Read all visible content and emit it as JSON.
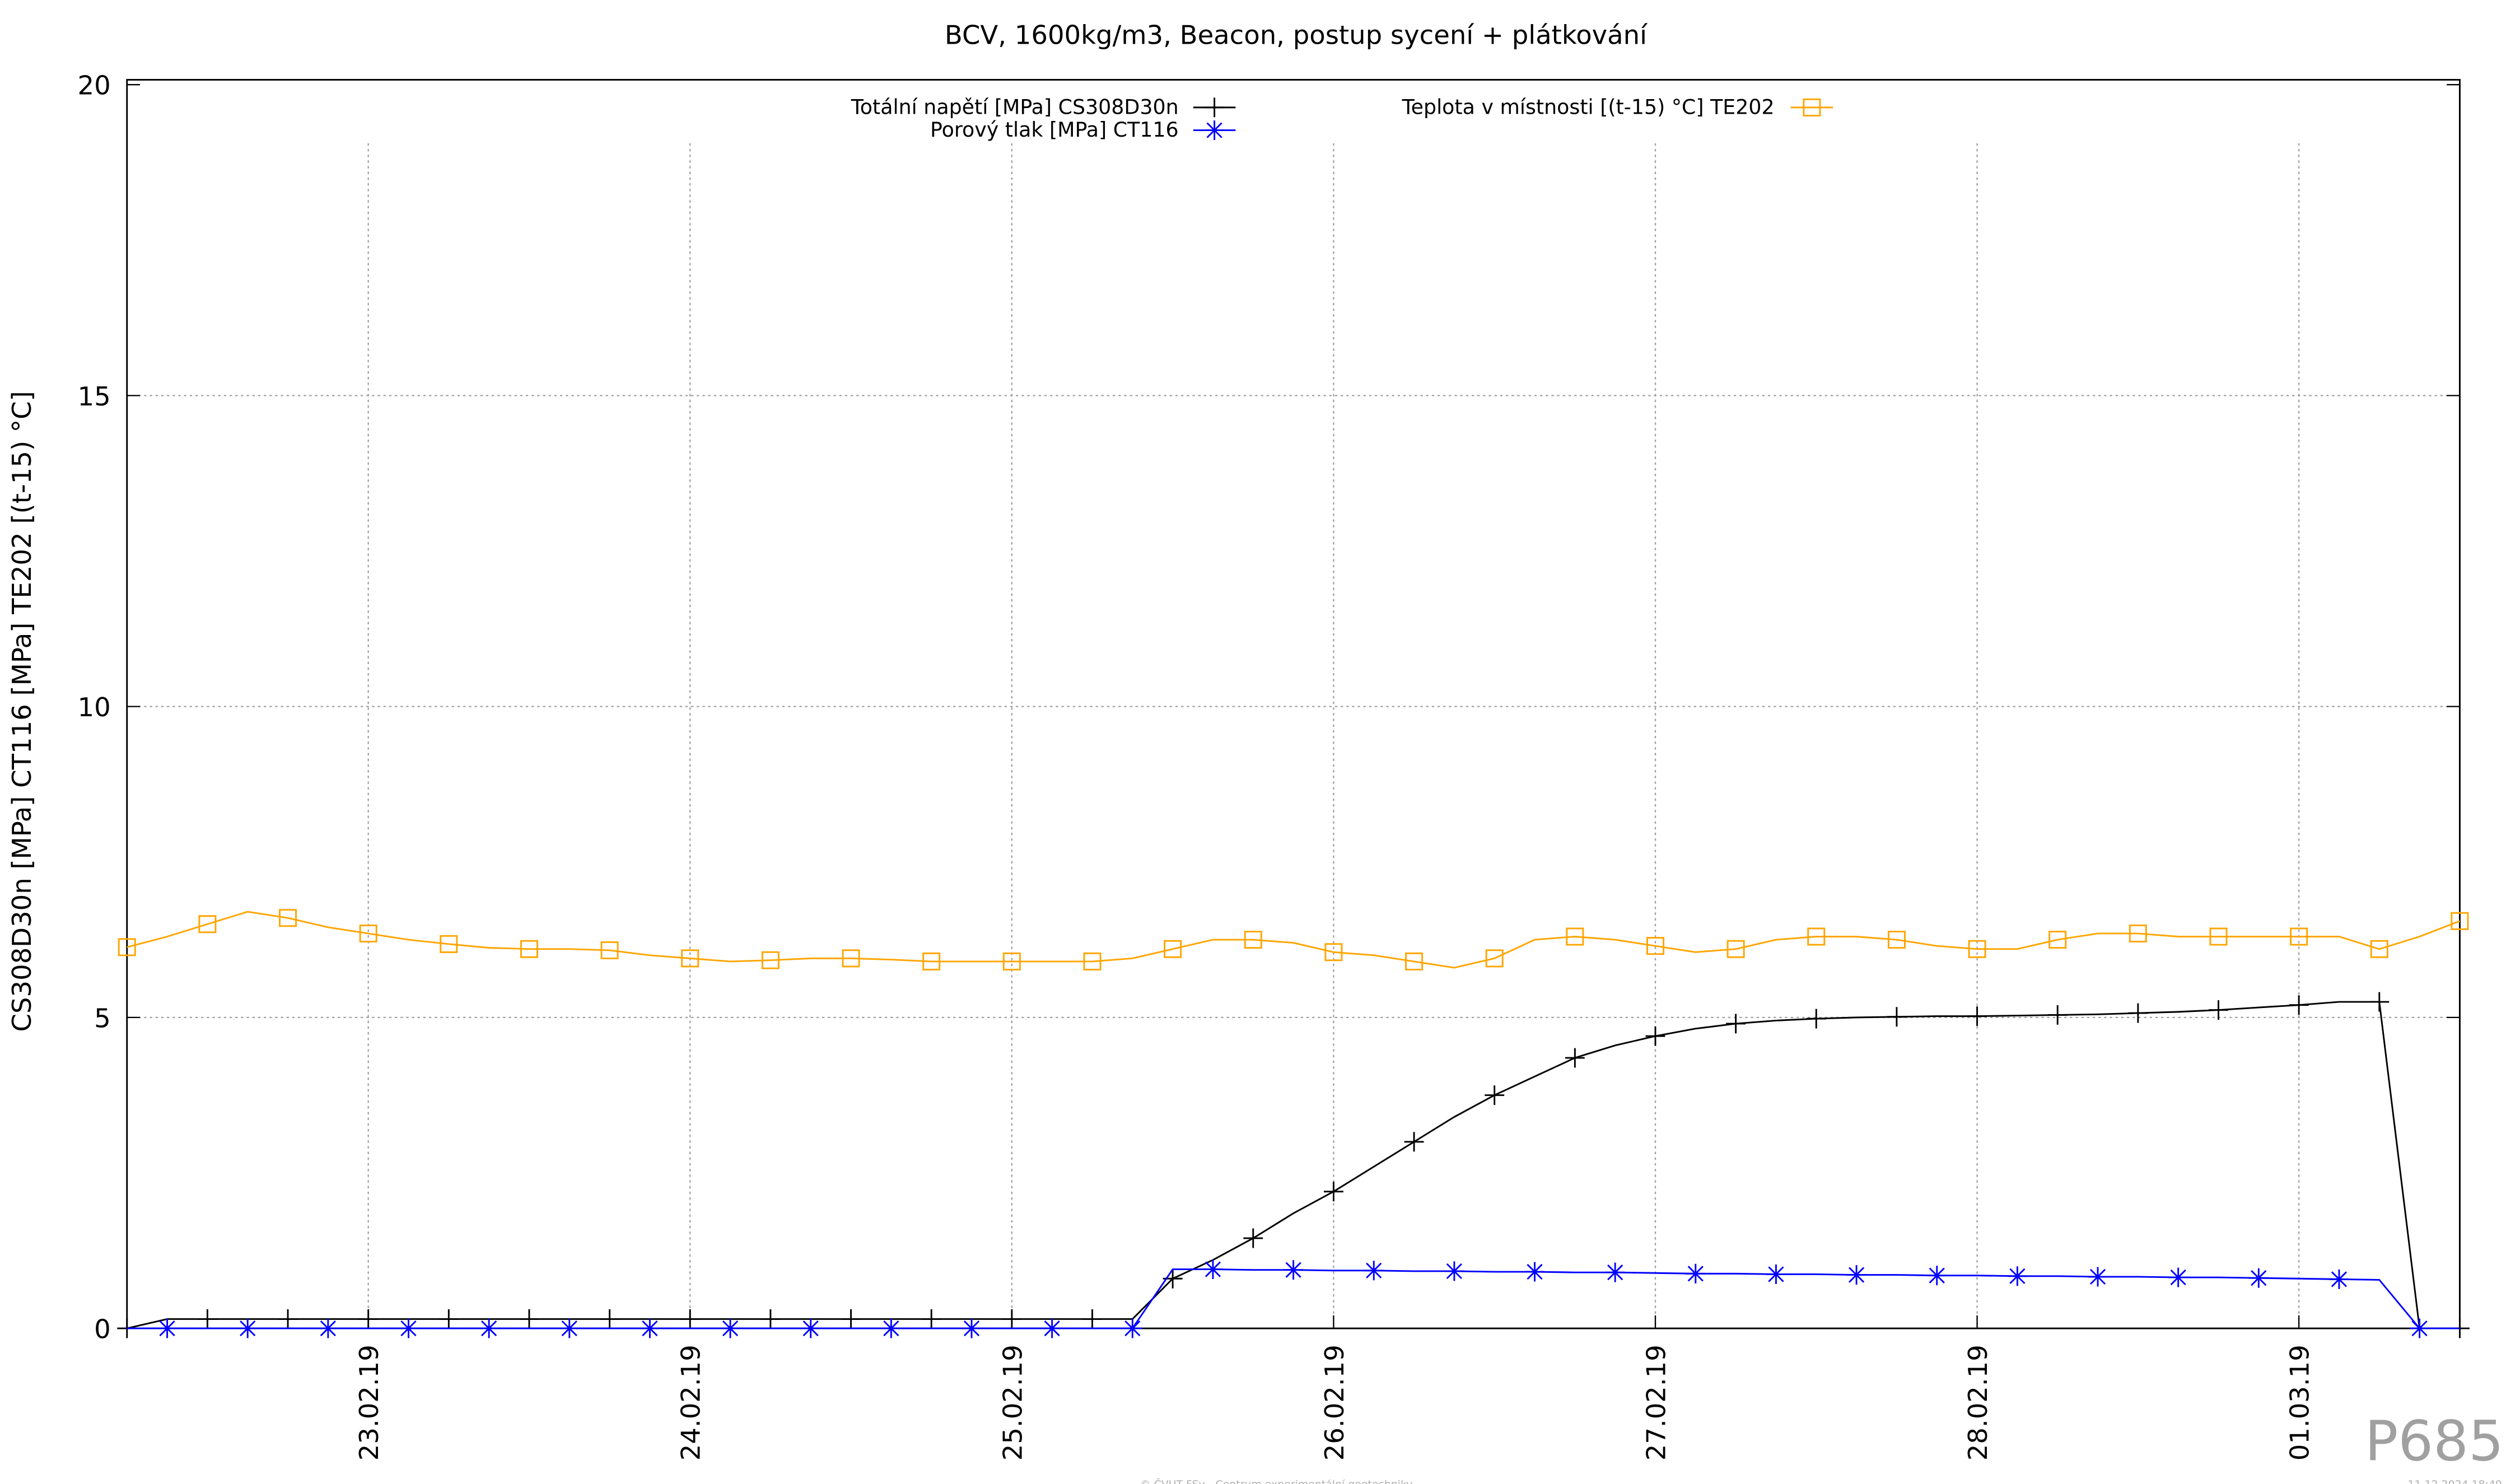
{
  "chart_data": {
    "type": "line",
    "title": "BCV, 1600kg/m3, Beacon, postup sycení + plátkování",
    "y_label": "CS308D30n [MPa] CT116 [MPa] TE202 [(t-15) °C]",
    "categories": [
      null,
      null,
      null,
      null,
      null,
      null,
      "23.02.19",
      null,
      null,
      null,
      null,
      null,
      null,
      null,
      "24.02.19",
      null,
      null,
      null,
      null,
      null,
      null,
      null,
      "25.02.19",
      null,
      null,
      null,
      null,
      null,
      null,
      null,
      "26.02.19",
      null,
      null,
      null,
      null,
      null,
      null,
      null,
      "27.02.19",
      null,
      null,
      null,
      null,
      null,
      null,
      null,
      "28.02.19",
      null,
      null,
      null,
      null,
      null,
      null,
      null,
      "01.03.19",
      null,
      null,
      null,
      null
    ],
    "series": [
      {
        "name": "Totální napětí [MPa] CS308D30n",
        "color": "#000000",
        "marker": "plus",
        "values": [
          0,
          0.15,
          0.15,
          0.15,
          0.15,
          0.15,
          0.15,
          0.15,
          0.15,
          0.15,
          0.15,
          0.15,
          0.15,
          0.15,
          0.15,
          0.15,
          0.15,
          0.15,
          0.15,
          0.15,
          0.15,
          0.15,
          0.15,
          0.15,
          0.15,
          0.15,
          0.8,
          1.1,
          1.45,
          1.85,
          2.2,
          2.6,
          3.0,
          3.4,
          3.75,
          4.05,
          4.35,
          4.55,
          4.7,
          4.82,
          4.9,
          4.95,
          4.98,
          5.0,
          5.01,
          5.02,
          5.02,
          5.03,
          5.04,
          5.05,
          5.07,
          5.09,
          5.12,
          5.16,
          5.2,
          5.25,
          5.25,
          0,
          0
        ]
      },
      {
        "name": "Porový tlak [MPa] CT116",
        "color": "#0000ff",
        "marker": "star",
        "values": [
          0,
          0,
          0,
          0,
          0,
          0,
          0,
          0,
          0,
          0,
          0,
          0,
          0,
          0,
          0,
          0,
          0,
          0,
          0,
          0,
          0,
          0,
          0,
          0,
          0,
          0,
          0.95,
          0.95,
          0.94,
          0.94,
          0.93,
          0.93,
          0.92,
          0.92,
          0.91,
          0.91,
          0.9,
          0.9,
          0.89,
          0.88,
          0.88,
          0.87,
          0.87,
          0.86,
          0.86,
          0.85,
          0.85,
          0.84,
          0.84,
          0.83,
          0.83,
          0.82,
          0.82,
          0.81,
          0.8,
          0.79,
          0.78,
          0,
          0
        ]
      },
      {
        "name": "Teplota v místnosti [(t-15) °C] TE202",
        "color": "#ffa500",
        "marker": "square",
        "values": [
          6.13,
          6.3,
          6.5,
          6.7,
          6.6,
          6.45,
          6.35,
          6.25,
          6.18,
          6.12,
          6.1,
          6.1,
          6.08,
          6.0,
          5.95,
          5.9,
          5.92,
          5.95,
          5.95,
          5.93,
          5.9,
          5.9,
          5.9,
          5.9,
          5.9,
          5.95,
          6.1,
          6.25,
          6.25,
          6.2,
          6.05,
          6.0,
          5.9,
          5.8,
          5.95,
          6.25,
          6.3,
          6.25,
          6.15,
          6.05,
          6.1,
          6.25,
          6.3,
          6.3,
          6.25,
          6.15,
          6.1,
          6.1,
          6.25,
          6.35,
          6.35,
          6.3,
          6.3,
          6.3,
          6.3,
          6.3,
          6.1,
          6.3,
          6.55
        ]
      }
    ],
    "ylim": [
      0,
      20
    ],
    "yticks": [
      0,
      5,
      10,
      15,
      20
    ],
    "grid": true
  },
  "watermark": "P685",
  "footer": "© ČVUT FSv - Centrum experimentální geotechniky",
  "timestamp": "11.12.2024 18:49"
}
